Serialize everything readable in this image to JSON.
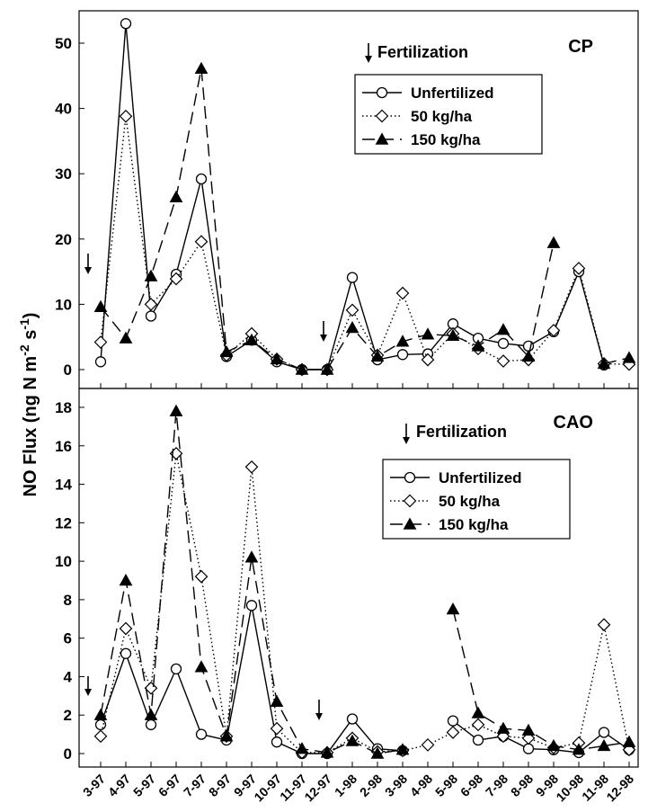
{
  "figure": {
    "ylabel_main": "NO Flux (ng N m",
    "ylabel_exp1": "-2",
    "ylabel_mid": " s",
    "ylabel_exp2": "-1",
    "ylabel_end": ")"
  },
  "chart_data": [
    {
      "type": "line",
      "title": "CP",
      "annotation": "Fertilization",
      "categories": [
        "3-97",
        "4-97",
        "5-97",
        "6-97",
        "7-97",
        "8-97",
        "9-97",
        "10-97",
        "11-97",
        "12-97",
        "1-98",
        "2-98",
        "3-98",
        "4-98",
        "5-98",
        "6-98",
        "7-98",
        "8-98",
        "9-98",
        "10-98",
        "11-98",
        "12-98"
      ],
      "ylim": [
        0,
        55
      ],
      "yticks": [
        0,
        10,
        20,
        30,
        40,
        50
      ],
      "legend_position": "top-center",
      "series": [
        {
          "name": "Unfertilized",
          "marker": "open-circle",
          "line": "solid",
          "values": [
            1.2,
            53,
            8.2,
            14.6,
            29.2,
            2.0,
            4.5,
            1.2,
            0,
            0,
            14.1,
            1.5,
            2.3,
            2.4,
            7.0,
            4.8,
            4.0,
            3.6,
            5.8,
            15,
            0.7,
            null
          ]
        },
        {
          "name": "50 kg/ha",
          "marker": "open-diamond",
          "line": "dotted",
          "values": [
            4.2,
            38.8,
            10.0,
            13.9,
            19.6,
            2.2,
            5.5,
            1.6,
            0,
            0,
            9.1,
            2.2,
            11.7,
            1.5,
            5.5,
            3.2,
            1.3,
            1.5,
            6.0,
            15.5,
            0.9,
            0.8
          ]
        },
        {
          "name": "150 kg/ha",
          "marker": "filled-triangle",
          "line": "dashed",
          "values": [
            9.6,
            4.8,
            14.3,
            26.4,
            46.1,
            2.7,
            4.5,
            1.6,
            0,
            0,
            6.4,
            2.0,
            4.3,
            5.4,
            5.2,
            3.6,
            6.1,
            2.0,
            19.4,
            null,
            0.9,
            1.8
          ]
        }
      ],
      "fertilization_arrows_at": [
        "3-97",
        "12-97"
      ]
    },
    {
      "type": "line",
      "title": "CAO",
      "annotation": "Fertilization",
      "categories": [
        "3-97",
        "4-97",
        "5-97",
        "6-97",
        "7-97",
        "8-97",
        "9-97",
        "10-97",
        "11-97",
        "12-97",
        "1-98",
        "2-98",
        "3-98",
        "4-98",
        "5-98",
        "6-98",
        "7-98",
        "8-98",
        "9-98",
        "10-98",
        "11-98",
        "12-98"
      ],
      "ylim": [
        -0.3,
        18.5
      ],
      "yticks": [
        0,
        2,
        4,
        6,
        8,
        10,
        12,
        14,
        16,
        18
      ],
      "legend_position": "middle-right",
      "series": [
        {
          "name": "Unfertilized",
          "marker": "open-circle",
          "line": "solid",
          "values": [
            1.5,
            5.2,
            1.5,
            4.4,
            1.0,
            0.7,
            7.7,
            0.6,
            0,
            0,
            1.8,
            0.25,
            0.15,
            null,
            1.7,
            0.7,
            0.9,
            0.25,
            0.2,
            0.05,
            1.1,
            0.2
          ]
        },
        {
          "name": "50 kg/ha",
          "marker": "open-diamond",
          "line": "dotted",
          "values": [
            0.9,
            6.5,
            3.4,
            15.6,
            9.2,
            0.9,
            14.9,
            1.3,
            0.05,
            0.05,
            0.8,
            0.1,
            0.15,
            0.45,
            1.1,
            1.5,
            0.9,
            0.8,
            0.3,
            0.55,
            6.7,
            0.2
          ]
        },
        {
          "name": "150 kg/ha",
          "marker": "filled-triangle",
          "line": "dashed",
          "values": [
            2.0,
            9.0,
            2.0,
            17.8,
            4.5,
            0.9,
            10.2,
            2.7,
            0.25,
            0.05,
            0.65,
            0.0,
            0.2,
            null,
            7.5,
            2.1,
            1.3,
            1.2,
            0.4,
            0.2,
            0.4,
            0.6
          ]
        }
      ],
      "fertilization_arrows_at": [
        "3-97",
        "12-97"
      ]
    }
  ]
}
